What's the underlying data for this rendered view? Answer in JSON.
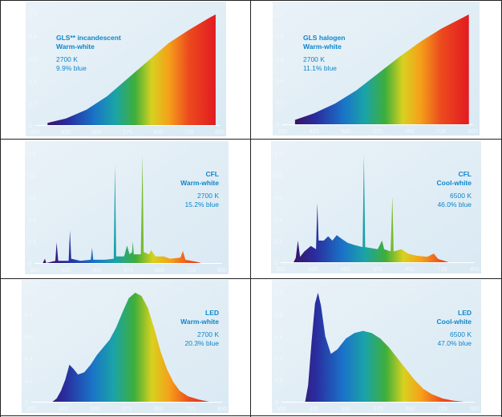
{
  "palette": {
    "panel_bg": "#d9e9f3",
    "accent_text": "#0f86c8",
    "tick_text": "#f3f8fb"
  },
  "chart_data": [
    {
      "type": "area",
      "x_ticks": [
        350,
        425,
        500,
        575,
        650,
        725,
        800
      ],
      "y_ticks": [
        "0",
        "0.2",
        "0.4",
        "0.6",
        "0.8",
        "1.0"
      ],
      "xlim": [
        350,
        800
      ],
      "ylim": [
        0,
        1.0
      ],
      "label_lines": [
        "GLS** incandescent",
        "Warm-white"
      ],
      "info_lines": [
        "2700 K",
        "9.9% blue"
      ],
      "label_align": "left",
      "points": [
        [
          380,
          0.02
        ],
        [
          425,
          0.06
        ],
        [
          475,
          0.14
        ],
        [
          525,
          0.26
        ],
        [
          575,
          0.42
        ],
        [
          625,
          0.58
        ],
        [
          675,
          0.74
        ],
        [
          725,
          0.86
        ],
        [
          775,
          0.97
        ],
        [
          790,
          1.0
        ]
      ]
    },
    {
      "type": "area",
      "x_ticks": [
        350,
        425,
        500,
        575,
        650,
        725,
        800
      ],
      "y_ticks": [
        "0",
        "0.2",
        "0.4",
        "0.6",
        "0.8",
        "1.0"
      ],
      "xlim": [
        350,
        800
      ],
      "ylim": [
        0,
        1.0
      ],
      "label_lines": [
        "GLS halogen",
        "Warm-white"
      ],
      "info_lines": [
        "2700 K",
        "11.1% blue"
      ],
      "label_align": "left",
      "points": [
        [
          380,
          0.04
        ],
        [
          425,
          0.1
        ],
        [
          475,
          0.19
        ],
        [
          525,
          0.31
        ],
        [
          575,
          0.46
        ],
        [
          625,
          0.61
        ],
        [
          675,
          0.75
        ],
        [
          725,
          0.87
        ],
        [
          775,
          0.97
        ],
        [
          790,
          1.0
        ]
      ]
    },
    {
      "type": "area",
      "x_ticks": [
        350,
        425,
        500,
        575,
        650,
        725,
        800
      ],
      "y_ticks": [
        "0",
        "0.2",
        "0.4",
        "0.6",
        "0.8",
        "1.0"
      ],
      "xlim": [
        350,
        800
      ],
      "ylim": [
        0,
        1.0
      ],
      "label_lines": [
        "CFL",
        "Warm-white"
      ],
      "info_lines": [
        "2700 K",
        "15.2% blue"
      ],
      "label_align": "right",
      "points": [
        [
          350,
          0
        ],
        [
          370,
          0
        ],
        [
          375,
          0.04
        ],
        [
          378,
          0
        ],
        [
          400,
          0.02
        ],
        [
          403,
          0.19
        ],
        [
          407,
          0.02
        ],
        [
          420,
          0.02
        ],
        [
          432,
          0.02
        ],
        [
          435,
          0.3
        ],
        [
          438,
          0.04
        ],
        [
          460,
          0.02
        ],
        [
          485,
          0.03
        ],
        [
          488,
          0.14
        ],
        [
          491,
          0.03
        ],
        [
          520,
          0.03
        ],
        [
          540,
          0.04
        ],
        [
          543,
          0.9
        ],
        [
          546,
          0.06
        ],
        [
          565,
          0.06
        ],
        [
          572,
          0.16
        ],
        [
          578,
          0.08
        ],
        [
          584,
          0.1
        ],
        [
          586,
          0.2
        ],
        [
          588,
          0.08
        ],
        [
          605,
          0.08
        ],
        [
          609,
          0.99
        ],
        [
          612,
          0.1
        ],
        [
          625,
          0.08
        ],
        [
          630,
          0.12
        ],
        [
          640,
          0.06
        ],
        [
          660,
          0.06
        ],
        [
          675,
          0.04
        ],
        [
          700,
          0.05
        ],
        [
          706,
          0.11
        ],
        [
          712,
          0.03
        ],
        [
          740,
          0.01
        ],
        [
          750,
          0
        ]
      ]
    },
    {
      "type": "area",
      "x_ticks": [
        350,
        425,
        500,
        575,
        650,
        725,
        800
      ],
      "y_ticks": [
        "0",
        "0.2",
        "0.4",
        "0.6",
        "0.8",
        "1.0"
      ],
      "xlim": [
        350,
        800
      ],
      "ylim": [
        0,
        1.0
      ],
      "label_lines": [
        "CFL",
        "Cool-white"
      ],
      "info_lines": [
        "6500 K",
        "46.0% blue"
      ],
      "label_align": "right",
      "points": [
        [
          350,
          0
        ],
        [
          380,
          0
        ],
        [
          385,
          0.04
        ],
        [
          390,
          0.2
        ],
        [
          395,
          0.05
        ],
        [
          405,
          0.1
        ],
        [
          420,
          0.15
        ],
        [
          432,
          0.12
        ],
        [
          435,
          0.55
        ],
        [
          438,
          0.2
        ],
        [
          450,
          0.2
        ],
        [
          460,
          0.24
        ],
        [
          470,
          0.2
        ],
        [
          480,
          0.25
        ],
        [
          490,
          0.22
        ],
        [
          505,
          0.18
        ],
        [
          520,
          0.16
        ],
        [
          540,
          0.14
        ],
        [
          543,
          0.99
        ],
        [
          546,
          0.14
        ],
        [
          560,
          0.13
        ],
        [
          575,
          0.12
        ],
        [
          585,
          0.2
        ],
        [
          590,
          0.12
        ],
        [
          605,
          0.1
        ],
        [
          609,
          0.61
        ],
        [
          612,
          0.1
        ],
        [
          630,
          0.12
        ],
        [
          645,
          0.08
        ],
        [
          665,
          0.06
        ],
        [
          690,
          0.05
        ],
        [
          705,
          0.08
        ],
        [
          715,
          0.03
        ],
        [
          740,
          0
        ]
      ]
    },
    {
      "type": "area",
      "x_ticks": [
        350,
        425,
        500,
        575,
        650,
        725,
        800
      ],
      "y_ticks": [
        "0",
        "0.2",
        "0.4",
        "0.6",
        "0.8",
        "1.0"
      ],
      "xlim": [
        350,
        800
      ],
      "ylim": [
        0,
        1.0
      ],
      "label_lines": [
        "LED",
        "Warm-white"
      ],
      "info_lines": [
        "2700 K",
        "20.3% blue"
      ],
      "label_align": "right",
      "points": [
        [
          400,
          0
        ],
        [
          410,
          0.03
        ],
        [
          420,
          0.1
        ],
        [
          430,
          0.2
        ],
        [
          440,
          0.34
        ],
        [
          450,
          0.3
        ],
        [
          460,
          0.25
        ],
        [
          475,
          0.27
        ],
        [
          490,
          0.34
        ],
        [
          505,
          0.43
        ],
        [
          520,
          0.5
        ],
        [
          535,
          0.57
        ],
        [
          550,
          0.68
        ],
        [
          565,
          0.82
        ],
        [
          580,
          0.95
        ],
        [
          595,
          1.0
        ],
        [
          610,
          0.97
        ],
        [
          625,
          0.86
        ],
        [
          640,
          0.67
        ],
        [
          655,
          0.46
        ],
        [
          670,
          0.3
        ],
        [
          685,
          0.18
        ],
        [
          700,
          0.1
        ],
        [
          720,
          0.05
        ],
        [
          745,
          0.02
        ],
        [
          770,
          0
        ]
      ]
    },
    {
      "type": "area",
      "x_ticks": [
        350,
        425,
        500,
        575,
        650,
        725,
        800
      ],
      "y_ticks": [
        "0",
        "0.2",
        "0.4",
        "0.6",
        "0.8",
        "1.0"
      ],
      "xlim": [
        350,
        800
      ],
      "ylim": [
        0,
        1.0
      ],
      "label_lines": [
        "LED",
        "Cool-white"
      ],
      "info_lines": [
        "6500 K",
        "47.0% blue"
      ],
      "label_align": "right",
      "points": [
        [
          405,
          0
        ],
        [
          412,
          0.15
        ],
        [
          420,
          0.55
        ],
        [
          428,
          0.9
        ],
        [
          435,
          1.0
        ],
        [
          442,
          0.88
        ],
        [
          452,
          0.6
        ],
        [
          465,
          0.44
        ],
        [
          480,
          0.48
        ],
        [
          500,
          0.58
        ],
        [
          520,
          0.63
        ],
        [
          540,
          0.65
        ],
        [
          560,
          0.63
        ],
        [
          580,
          0.58
        ],
        [
          600,
          0.5
        ],
        [
          620,
          0.4
        ],
        [
          640,
          0.3
        ],
        [
          660,
          0.2
        ],
        [
          680,
          0.12
        ],
        [
          700,
          0.07
        ],
        [
          725,
          0.03
        ],
        [
          750,
          0.01
        ],
        [
          775,
          0
        ]
      ]
    }
  ]
}
